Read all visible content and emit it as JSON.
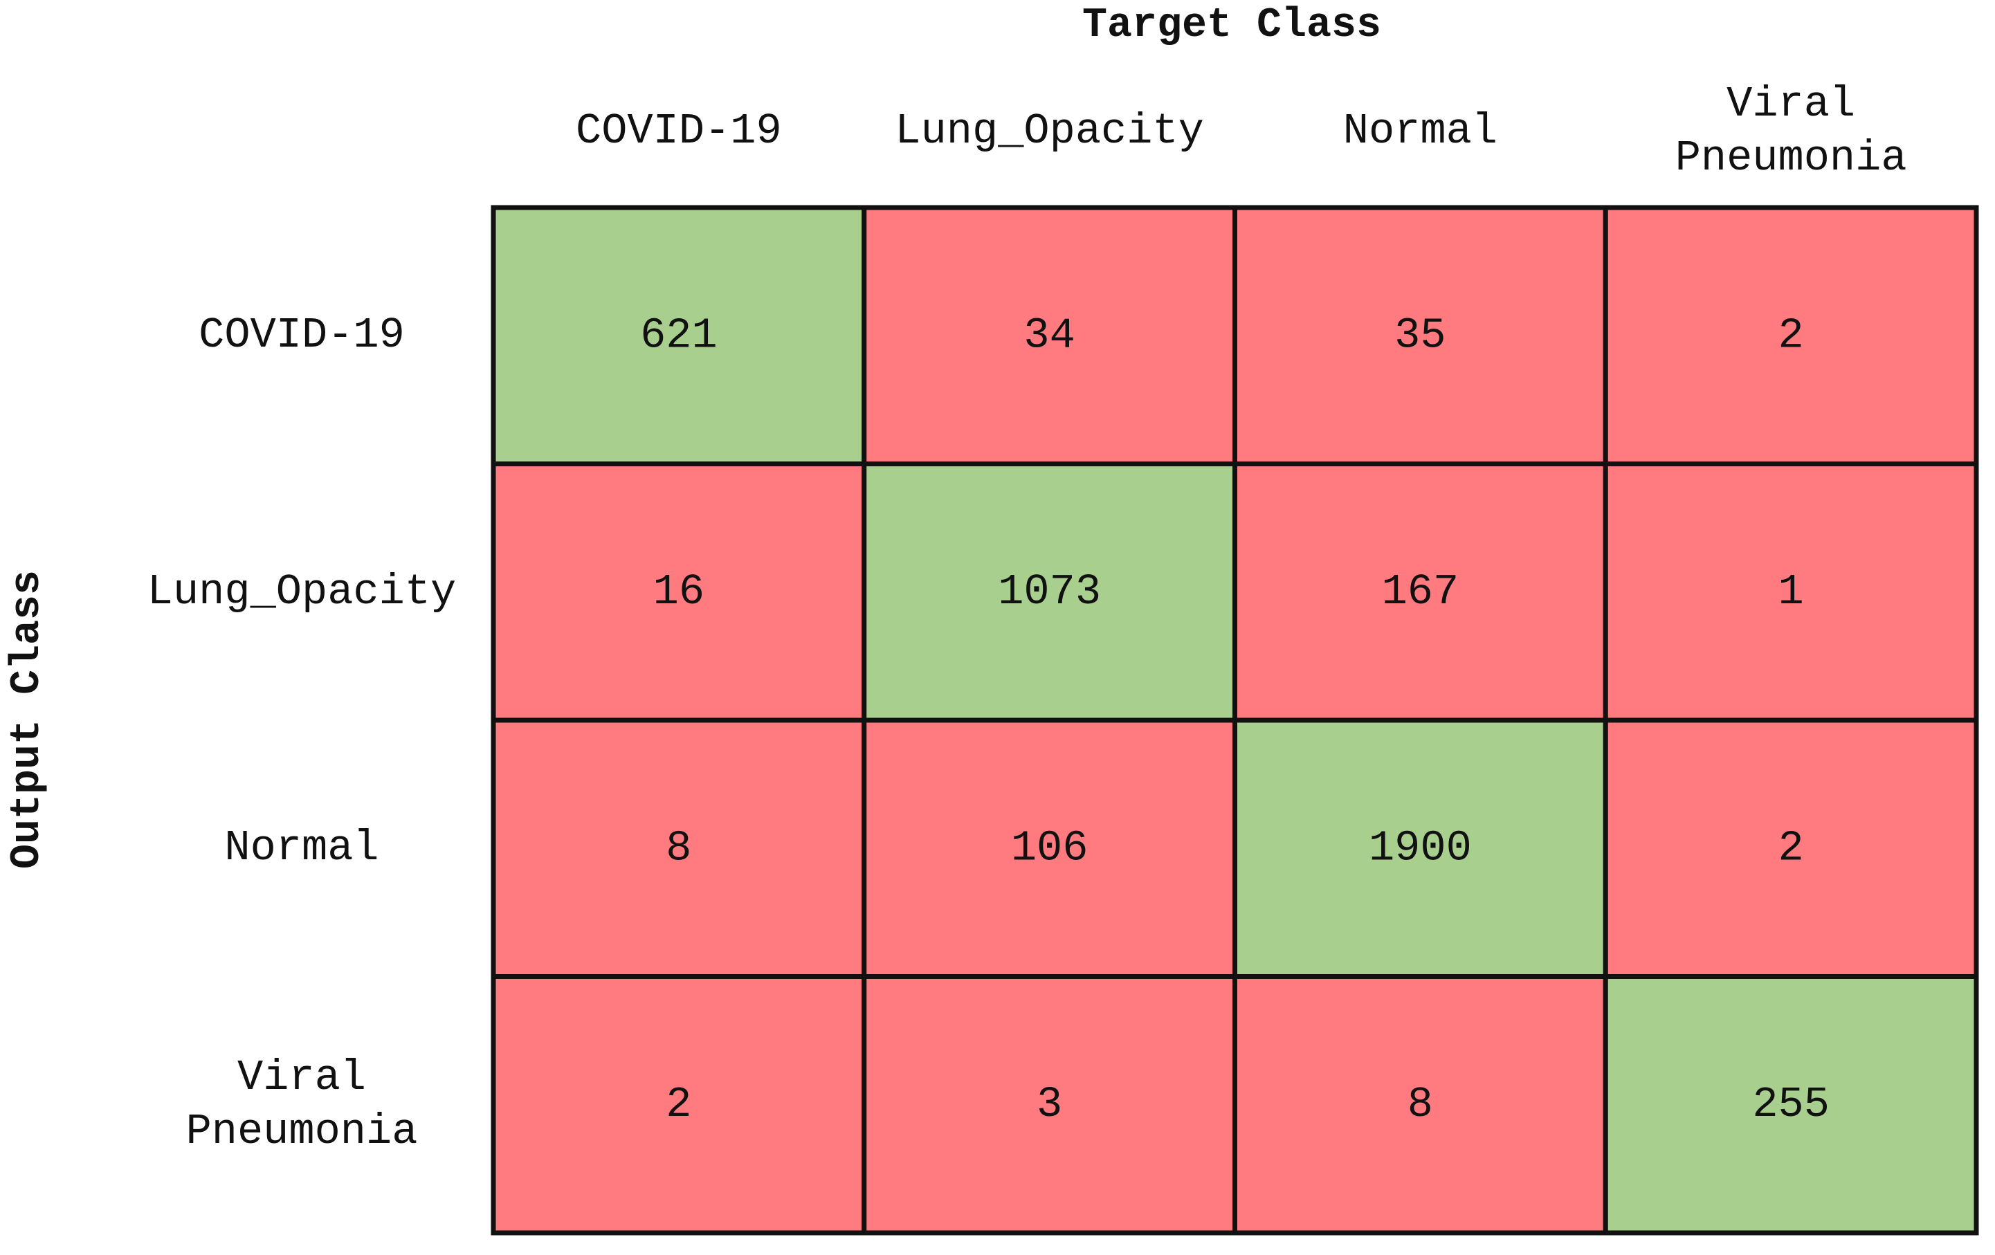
{
  "chart_data": {
    "type": "confusion_matrix",
    "x_label": "Target Class",
    "y_label": "Output Class",
    "x_categories": [
      "COVID-19",
      "Lung_Opacity",
      "Normal",
      "Viral Pneumonia"
    ],
    "y_categories": [
      "COVID-19",
      "Lung_Opacity",
      "Normal",
      "Viral Pneumonia"
    ],
    "values": [
      [
        621,
        34,
        35,
        2
      ],
      [
        16,
        1073,
        167,
        1
      ],
      [
        8,
        106,
        1900,
        2
      ],
      [
        2,
        3,
        8,
        255
      ]
    ],
    "diagonal_color": "#a9cf8f",
    "off_diagonal_color": "#ff7b7f"
  }
}
